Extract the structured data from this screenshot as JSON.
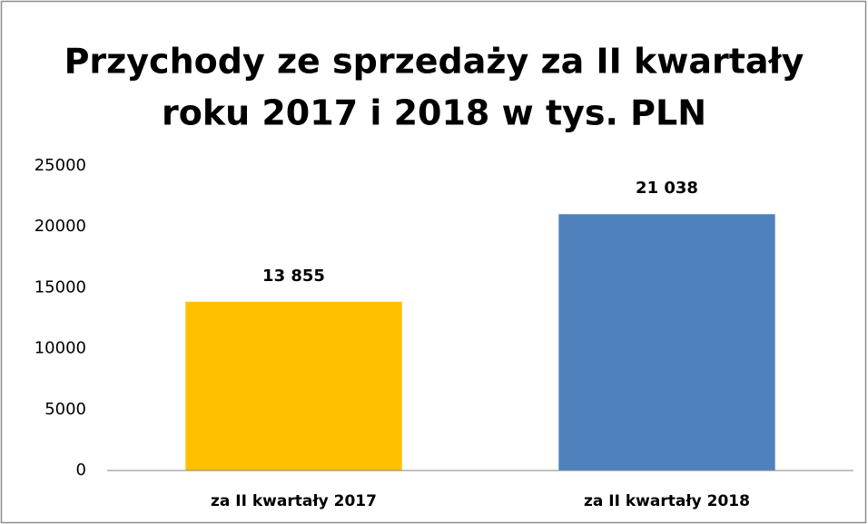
{
  "chart_data": {
    "type": "bar",
    "title": [
      "Przychody ze sprzedaży za II kwartały",
      "roku 2017 i 2018 w tys. PLN"
    ],
    "categories": [
      "za II kwartały 2017",
      "za II kwartały 2018"
    ],
    "values": [
      13855,
      21038
    ],
    "value_labels": [
      "13 855",
      "21 038"
    ],
    "colors": [
      "#FFC000",
      "#4F81BD"
    ],
    "ylim": [
      0,
      25000
    ],
    "yticks": [
      0,
      5000,
      10000,
      15000,
      20000,
      25000
    ],
    "grid": false
  }
}
